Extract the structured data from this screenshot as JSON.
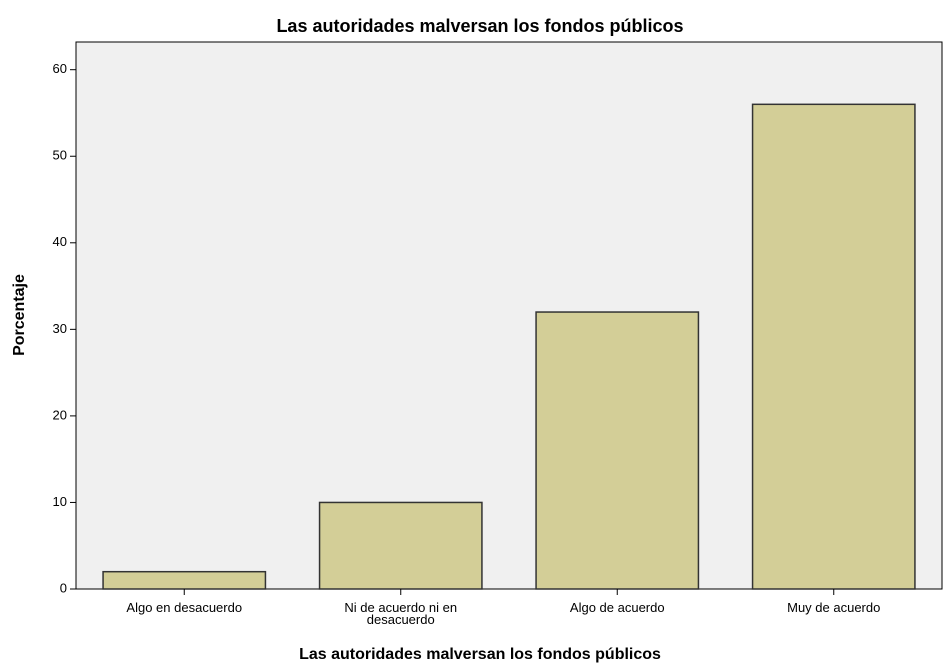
{
  "chart_data": {
    "type": "bar",
    "title": "Las autoridades malversan los fondos públicos",
    "x_label": "Las autoridades malversan los fondos públicos",
    "y_label": "Porcentaje",
    "categories": [
      "Algo en desacuerdo",
      "Ni de acuerdo ni en desacuerdo",
      "Algo de acuerdo",
      "Muy de acuerdo"
    ],
    "values": [
      2,
      10,
      32,
      56
    ],
    "color": "#d3ce97",
    "ylim": [
      0,
      63.2
    ],
    "yticks": [
      0,
      10,
      20,
      30,
      40,
      50,
      60
    ],
    "grid": false
  }
}
